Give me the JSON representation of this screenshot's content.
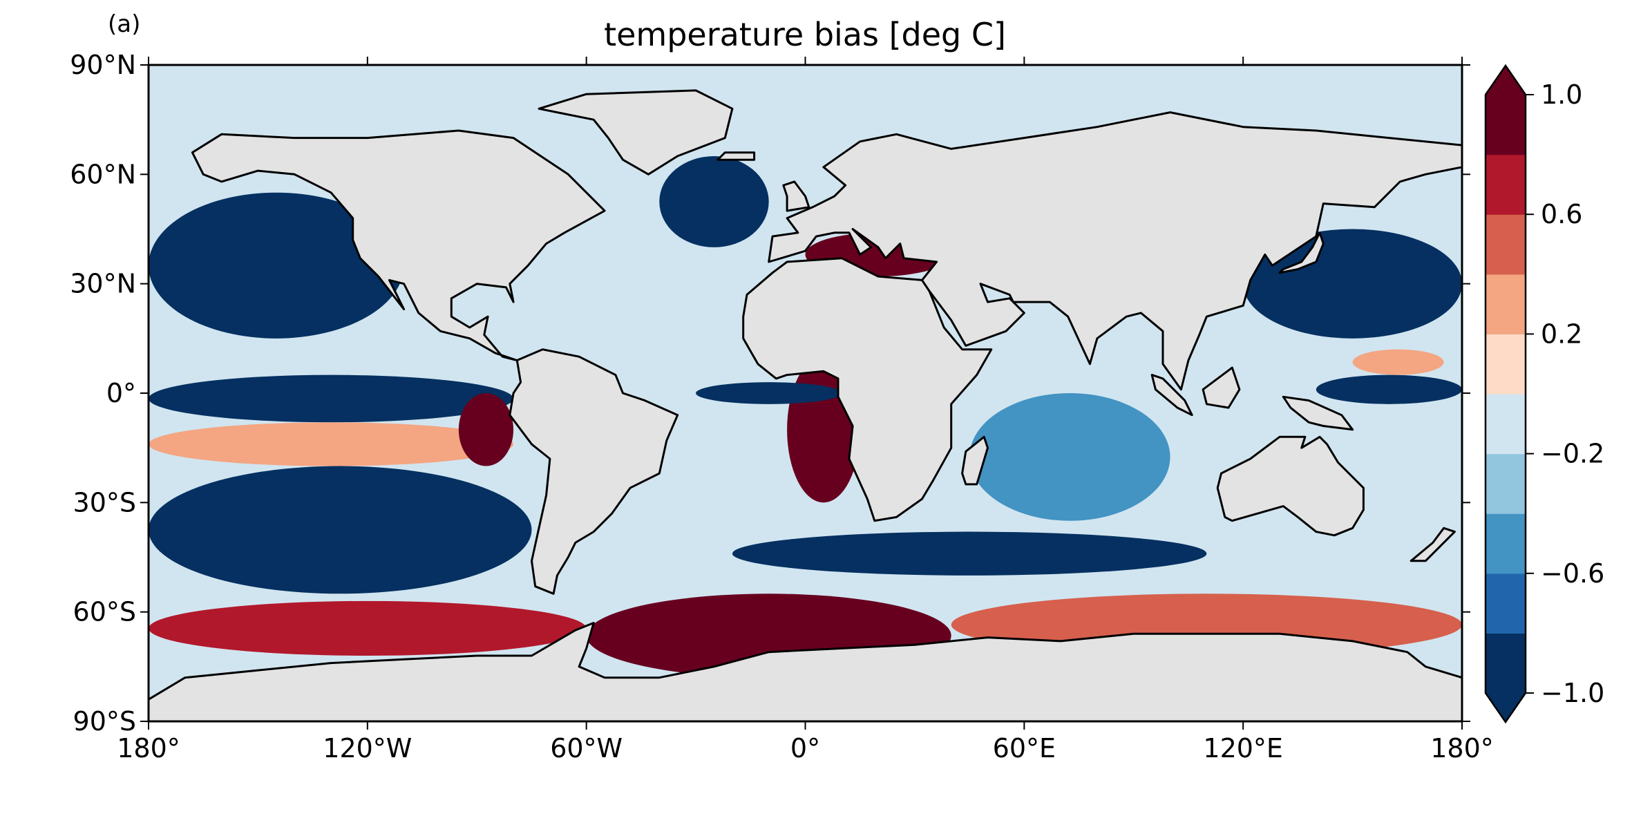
{
  "chart_data": {
    "type": "heatmap",
    "panel_label": "(a)",
    "title": "temperature bias [deg C]",
    "projection": "plate carree (global map)",
    "xlim": [
      -180,
      180
    ],
    "ylim": [
      -90,
      90
    ],
    "x_ticks": [
      -180,
      -120,
      -60,
      0,
      60,
      120,
      180
    ],
    "x_tick_labels": [
      "180°",
      "120°W",
      "60°W",
      "0°",
      "60°E",
      "120°E",
      "180°"
    ],
    "y_ticks": [
      90,
      60,
      30,
      0,
      -30,
      -60,
      -90
    ],
    "y_tick_labels": [
      "90°N",
      "60°N",
      "30°N",
      "0°",
      "30°S",
      "60°S",
      "90°S"
    ],
    "land_color": "#e3e3e3",
    "grid": false,
    "colorbar": {
      "placement": "right",
      "extend": "both",
      "levels": [
        -1.0,
        -0.8,
        -0.6,
        -0.4,
        -0.2,
        0.0,
        0.2,
        0.4,
        0.6,
        0.8,
        1.0
      ],
      "colors": [
        "#053061",
        "#2166ac",
        "#4393c3",
        "#92c5de",
        "#d1e5f0",
        "#fddbc7",
        "#f4a582",
        "#d6604d",
        "#b2182b",
        "#67001f"
      ],
      "tick_values": [
        -1.0,
        -0.6,
        -0.2,
        0.2,
        0.6,
        1.0
      ],
      "tick_labels": [
        "−1.0",
        "−0.6",
        "−0.2",
        "0.2",
        "0.6",
        "1.0"
      ]
    },
    "field_features": [
      {
        "lon": [
          -180,
          -110
        ],
        "lat": [
          15,
          55
        ],
        "value": -1.0
      },
      {
        "lon": [
          -180,
          -80
        ],
        "lat": [
          -8,
          5
        ],
        "value": -1.0
      },
      {
        "lon": [
          -180,
          -80
        ],
        "lat": [
          -20,
          -8
        ],
        "value": 0.3
      },
      {
        "lon": [
          -95,
          -80
        ],
        "lat": [
          -20,
          0
        ],
        "value": 1.0
      },
      {
        "lon": [
          -180,
          -75
        ],
        "lat": [
          -55,
          -20
        ],
        "value": -1.0
      },
      {
        "lon": [
          -180,
          -60
        ],
        "lat": [
          -72,
          -57
        ],
        "value": 0.8
      },
      {
        "lon": [
          -60,
          40
        ],
        "lat": [
          -78,
          -55
        ],
        "value": 1.0
      },
      {
        "lon": [
          40,
          180
        ],
        "lat": [
          -72,
          -55
        ],
        "value": 0.6
      },
      {
        "lon": [
          -40,
          -10
        ],
        "lat": [
          40,
          65
        ],
        "value": -1.0
      },
      {
        "lon": [
          -5,
          15
        ],
        "lat": [
          -30,
          10
        ],
        "value": 1.0
      },
      {
        "lon": [
          -30,
          10
        ],
        "lat": [
          -3,
          3
        ],
        "value": -1.0
      },
      {
        "lon": [
          -20,
          110
        ],
        "lat": [
          -50,
          -38
        ],
        "value": -1.0
      },
      {
        "lon": [
          45,
          100
        ],
        "lat": [
          -35,
          0
        ],
        "value": -0.4
      },
      {
        "lon": [
          120,
          180
        ],
        "lat": [
          15,
          45
        ],
        "value": -1.0
      },
      {
        "lon": [
          140,
          180
        ],
        "lat": [
          -3,
          5
        ],
        "value": -1.0
      },
      {
        "lon": [
          150,
          175
        ],
        "lat": [
          5,
          12
        ],
        "value": 0.3
      },
      {
        "lon": [
          0,
          40
        ],
        "lat": [
          32,
          44
        ],
        "value": 1.0
      }
    ]
  }
}
